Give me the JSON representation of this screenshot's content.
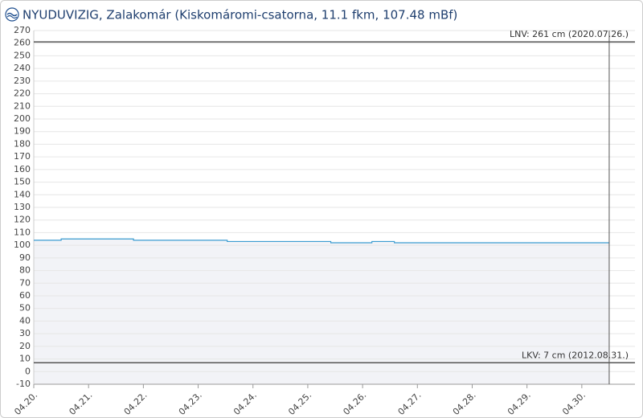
{
  "chart_data": {
    "type": "line",
    "title": "NYUDUVIZIG, Zalakomár (Kiskomáromi-csatorna, 11.1 fkm, 107.48 mBf)",
    "x": [
      20,
      20.5,
      20.5,
      21.82,
      21.82,
      23.53,
      23.53,
      25.42,
      25.42,
      26.17,
      26.17,
      26.58,
      26.58,
      30.5
    ],
    "series": [
      {
        "color": "#3a9bd0",
        "values": [
          104,
          104,
          105,
          105,
          104,
          104,
          103,
          103,
          102,
          102,
          103,
          103,
          102,
          102
        ]
      }
    ],
    "xlim": [
      20,
      30.97
    ],
    "xticks": [
      {
        "value": 20,
        "label": "04.20."
      },
      {
        "value": 21,
        "label": "04.21."
      },
      {
        "value": 22,
        "label": "04.22."
      },
      {
        "value": 23,
        "label": "04.23."
      },
      {
        "value": 24,
        "label": "04.24."
      },
      {
        "value": 25,
        "label": "04.25."
      },
      {
        "value": 26,
        "label": "04.26."
      },
      {
        "value": 27,
        "label": "04.27."
      },
      {
        "value": 28,
        "label": "04.28."
      },
      {
        "value": 29,
        "label": "04.29."
      },
      {
        "value": 30,
        "label": "04.30."
      }
    ],
    "ylim": [
      -10,
      270
    ],
    "yticks": [
      -10,
      0,
      10,
      20,
      30,
      40,
      50,
      60,
      70,
      80,
      90,
      100,
      110,
      120,
      130,
      140,
      150,
      160,
      170,
      180,
      190,
      200,
      210,
      220,
      230,
      240,
      250,
      260,
      270
    ],
    "grid": true,
    "area_color": "#f2f3f7",
    "reference_lines": [
      {
        "value": 261,
        "label": "LNV: 261 cm (2020.07.26.)"
      },
      {
        "value": 7,
        "label": "LKV: 7 cm (2012.08.31.)"
      }
    ],
    "marker_x": 30.5
  }
}
